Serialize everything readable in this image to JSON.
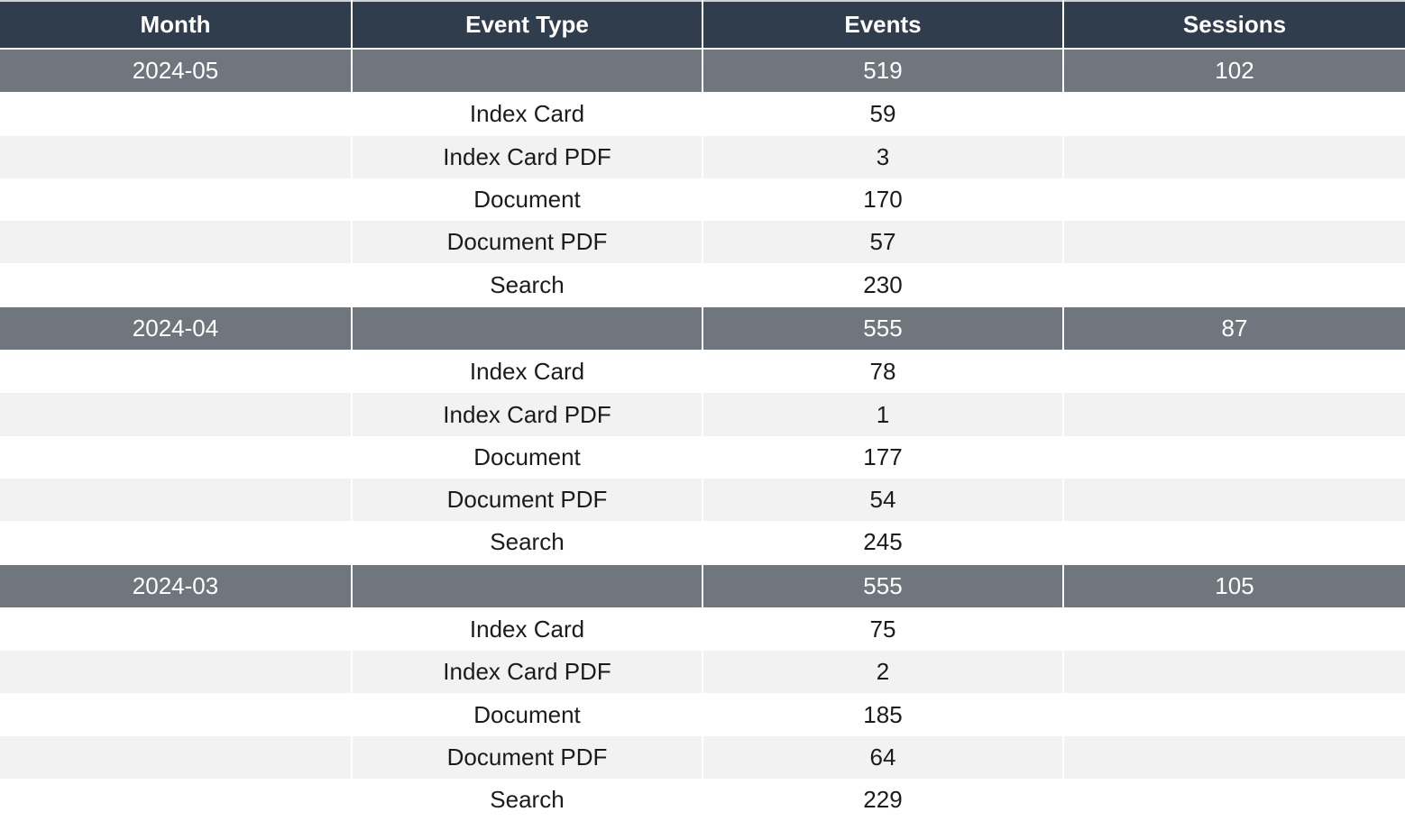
{
  "table": {
    "columns": [
      {
        "label": "Month"
      },
      {
        "label": "Event Type"
      },
      {
        "label": "Events"
      },
      {
        "label": "Sessions"
      }
    ],
    "groups": [
      {
        "month": "2024-05",
        "events": "519",
        "sessions": "102",
        "rows": [
          {
            "event_type": "Index Card",
            "events": "59"
          },
          {
            "event_type": "Index Card PDF",
            "events": "3"
          },
          {
            "event_type": "Document",
            "events": "170"
          },
          {
            "event_type": "Document PDF",
            "events": "57"
          },
          {
            "event_type": "Search",
            "events": "230"
          }
        ]
      },
      {
        "month": "2024-04",
        "events": "555",
        "sessions": "87",
        "rows": [
          {
            "event_type": "Index Card",
            "events": "78"
          },
          {
            "event_type": "Index Card PDF",
            "events": "1"
          },
          {
            "event_type": "Document",
            "events": "177"
          },
          {
            "event_type": "Document PDF",
            "events": "54"
          },
          {
            "event_type": "Search",
            "events": "245"
          }
        ]
      },
      {
        "month": "2024-03",
        "events": "555",
        "sessions": "105",
        "rows": [
          {
            "event_type": "Index Card",
            "events": "75"
          },
          {
            "event_type": "Index Card PDF",
            "events": "2"
          },
          {
            "event_type": "Document",
            "events": "185"
          },
          {
            "event_type": "Document PDF",
            "events": "64"
          },
          {
            "event_type": "Search",
            "events": "229"
          }
        ]
      }
    ]
  },
  "colors": {
    "header_bg": "#2f3d4d",
    "summary_bg": "#6f767d",
    "stripe_bg": "#f2f2f2",
    "header_text": "#ffffff",
    "body_text": "#1b1b1b"
  }
}
